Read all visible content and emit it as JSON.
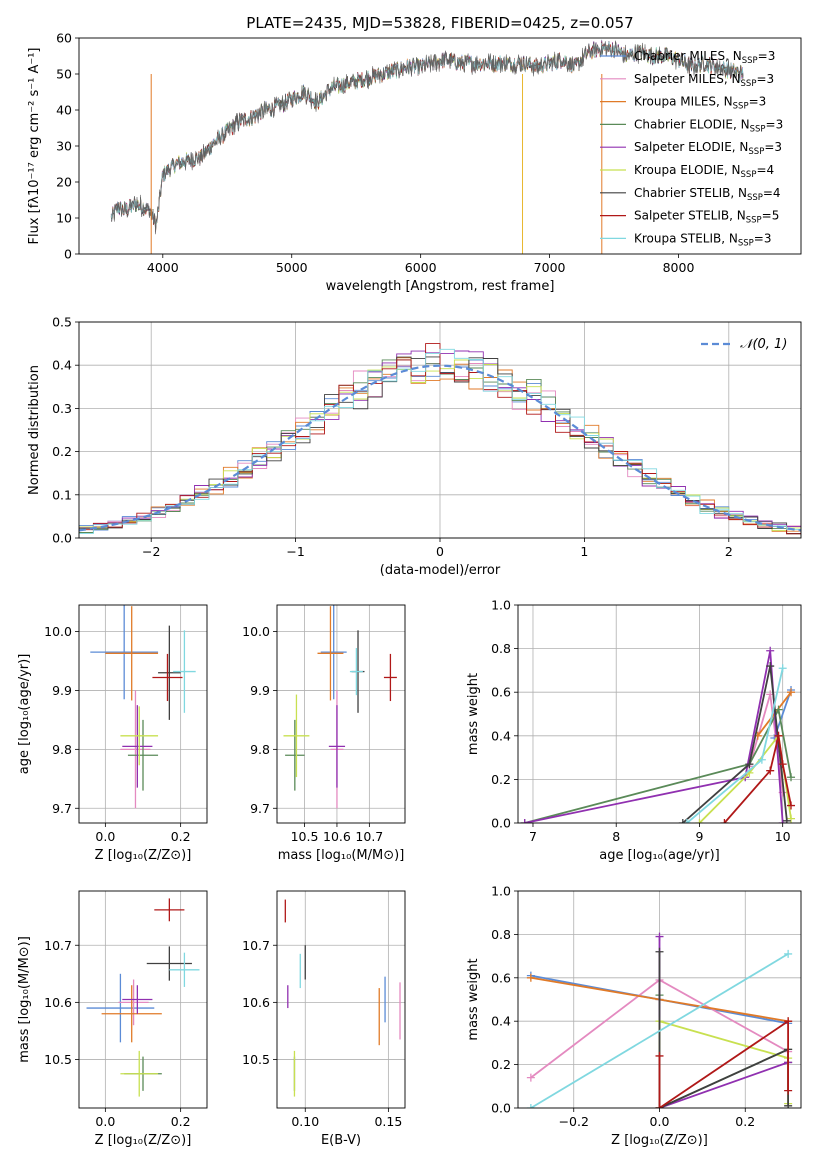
{
  "chart_data": [
    {
      "id": "spectrum",
      "type": "line",
      "title": "PLATE=2435, MJD=53828, FIBERID=0425, z=0.057",
      "xlabel": "wavelength [Angstrom, rest frame]",
      "ylabel": "Flux [fλ10⁻¹⁷ erg cm⁻² s⁻¹ A⁻¹]",
      "xlim": [
        3350,
        8950
      ],
      "ylim": [
        0,
        60
      ],
      "xticks": [
        4000,
        5000,
        6000,
        7000,
        8000
      ],
      "yticks": [
        0,
        10,
        20,
        30,
        40,
        50,
        60
      ],
      "grid": false,
      "legend_position": "top-right",
      "continuum": {
        "x": [
          3600,
          3650,
          3700,
          3800,
          3900,
          3950,
          4000,
          4100,
          4200,
          4300,
          4400,
          4500,
          4600,
          4700,
          4800,
          4900,
          5000,
          5100,
          5200,
          5300,
          5400,
          5500,
          5600,
          5700,
          5800,
          5900,
          6000,
          6100,
          6200,
          6300,
          6400,
          6500,
          6600,
          6700,
          6800,
          6900,
          7000,
          7100,
          7200,
          7300,
          7400,
          7500,
          7600,
          7700,
          7800,
          7900,
          8000,
          8100,
          8200,
          8300,
          8400,
          8500
        ],
        "y": [
          10,
          13,
          12,
          14,
          12,
          8,
          22,
          25,
          26,
          27,
          31,
          34,
          37,
          38,
          40,
          41,
          43,
          45,
          42,
          46,
          47,
          48,
          49,
          50,
          51,
          52,
          52,
          53,
          54,
          53,
          53,
          53,
          53,
          53,
          53,
          52,
          53,
          54,
          52,
          56,
          57,
          57,
          55,
          56,
          55,
          55,
          54,
          52,
          53,
          52,
          51,
          50
        ]
      },
      "series": [
        {
          "name": "Chabrier MILES, N_SSP=3",
          "label_main": "Chabrier MILES, N",
          "label_sub": "SSP",
          "label_tail": "=3",
          "color": "#5b8bd6"
        },
        {
          "name": "Salpeter MILES, N_SSP=3",
          "label_main": "Salpeter MILES, N",
          "label_sub": "SSP",
          "label_tail": "=3",
          "color": "#e48ac0"
        },
        {
          "name": "Kroupa MILES, N_SSP=3",
          "label_main": "Kroupa MILES, N",
          "label_sub": "SSP",
          "label_tail": "=3",
          "color": "#e07a28"
        },
        {
          "name": "Chabrier ELODIE, N_SSP=3",
          "label_main": "Chabrier ELODIE, N",
          "label_sub": "SSP",
          "label_tail": "=3",
          "color": "#5a8a58"
        },
        {
          "name": "Salpeter ELODIE, N_SSP=3",
          "label_main": "Salpeter ELODIE, N",
          "label_sub": "SSP",
          "label_tail": "=3",
          "color": "#9030b0"
        },
        {
          "name": "Kroupa ELODIE, N_SSP=4",
          "label_main": "Kroupa ELODIE, N",
          "label_sub": "SSP",
          "label_tail": "=4",
          "color": "#c8e050"
        },
        {
          "name": "Chabrier STELIB, N_SSP=4",
          "label_main": "Chabrier STELIB, N",
          "label_sub": "SSP",
          "label_tail": "=4",
          "color": "#404040"
        },
        {
          "name": "Salpeter STELIB, N_SSP=5",
          "label_main": "Salpeter STELIB, N",
          "label_sub": "SSP",
          "label_tail": "=5",
          "color": "#b01818"
        },
        {
          "name": "Kroupa STELIB, N_SSP=3",
          "label_main": "Kroupa STELIB, N",
          "label_sub": "SSP",
          "label_tail": "=3",
          "color": "#80d8e0"
        }
      ],
      "drops": [
        {
          "x": 3910,
          "color": "#e07a28"
        },
        {
          "x": 6790,
          "color": "#e8b830"
        },
        {
          "x": 7405,
          "color": "#e07a28"
        }
      ]
    },
    {
      "id": "residuals",
      "type": "step",
      "xlabel": "(data-model)/error",
      "ylabel": "Normed distribution",
      "xlim": [
        -2.5,
        2.5
      ],
      "ylim": [
        0,
        0.5
      ],
      "xticks": [
        -2,
        -1,
        0,
        1,
        2
      ],
      "yticks": [
        0.0,
        0.1,
        0.2,
        0.3,
        0.4,
        0.5
      ],
      "grid": true,
      "legend_position": "top-right",
      "legend_label": "𝒩(0, 1)",
      "bin_width": 0.1,
      "bin_start": -2.5,
      "base_color": "#5b8bd6",
      "hist_colors": [
        "#5b8bd6",
        "#e48ac0",
        "#e07a28",
        "#5a8a58",
        "#9030b0",
        "#c8e050",
        "#404040",
        "#b01818",
        "#80d8e0"
      ]
    },
    {
      "id": "age-vs-Z",
      "type": "scatter",
      "xlabel": "Z [log₁₀(Z/Z⊙)]",
      "ylabel": "age  [log₁₀(age/yr)]",
      "xlim": [
        -0.07,
        0.27
      ],
      "ylim": [
        9.675,
        10.045
      ],
      "xticks": [
        0.0,
        0.2
      ],
      "yticks": [
        9.7,
        9.8,
        9.9,
        10.0
      ],
      "grid": true,
      "points": [
        {
          "x": 0.05,
          "y": 9.965,
          "xerr": 0.09,
          "yerr": 0.08,
          "color": "#5b8bd6"
        },
        {
          "x": 0.08,
          "y": 9.8,
          "xerr": 0.04,
          "yerr": 0.1,
          "color": "#e48ac0"
        },
        {
          "x": 0.07,
          "y": 9.963,
          "xerr": 0.07,
          "yerr": 0.08,
          "color": "#e07a28"
        },
        {
          "x": 0.1,
          "y": 9.79,
          "xerr": 0.04,
          "yerr": 0.06,
          "color": "#5a8a58"
        },
        {
          "x": 0.085,
          "y": 9.805,
          "xerr": 0.04,
          "yerr": 0.07,
          "color": "#9030b0"
        },
        {
          "x": 0.09,
          "y": 9.823,
          "xerr": 0.05,
          "yerr": 0.05,
          "color": "#c8e050"
        },
        {
          "x": 0.17,
          "y": 9.93,
          "xerr": 0.03,
          "yerr": 0.08,
          "color": "#404040"
        },
        {
          "x": 0.165,
          "y": 9.922,
          "xerr": 0.04,
          "yerr": 0.04,
          "color": "#b01818"
        },
        {
          "x": 0.21,
          "y": 9.932,
          "xerr": 0.03,
          "yerr": 0.07,
          "color": "#80d8e0"
        }
      ]
    },
    {
      "id": "age-vs-mass",
      "type": "scatter",
      "xlabel": "mass [log₁₀(M/M⊙)]",
      "xlim": [
        10.415,
        10.81
      ],
      "ylim": [
        9.675,
        10.045
      ],
      "xticks": [
        10.5,
        10.6,
        10.7
      ],
      "yticks": [
        9.7,
        9.8,
        9.9,
        10.0
      ],
      "grid": true,
      "points": [
        {
          "x": 10.59,
          "y": 9.965,
          "xerr": 0.04,
          "yerr": 0.08,
          "color": "#5b8bd6"
        },
        {
          "x": 10.6,
          "y": 9.8,
          "xerr": 0.02,
          "yerr": 0.1,
          "color": "#e48ac0"
        },
        {
          "x": 10.58,
          "y": 9.963,
          "xerr": 0.04,
          "yerr": 0.08,
          "color": "#e07a28"
        },
        {
          "x": 10.47,
          "y": 9.79,
          "xerr": 0.03,
          "yerr": 0.06,
          "color": "#5a8a58"
        },
        {
          "x": 10.6,
          "y": 9.805,
          "xerr": 0.025,
          "yerr": 0.07,
          "color": "#9030b0"
        },
        {
          "x": 10.475,
          "y": 9.823,
          "xerr": 0.04,
          "yerr": 0.07,
          "color": "#c8e050"
        },
        {
          "x": 10.665,
          "y": 9.932,
          "xerr": 0.02,
          "yerr": 0.07,
          "color": "#404040"
        },
        {
          "x": 10.765,
          "y": 9.922,
          "xerr": 0.02,
          "yerr": 0.04,
          "color": "#b01818"
        },
        {
          "x": 10.66,
          "y": 9.932,
          "xerr": 0.02,
          "yerr": 0.04,
          "color": "#80d8e0"
        }
      ]
    },
    {
      "id": "weight-vs-age",
      "type": "line",
      "xlabel": "age  [log₁₀(age/yr)]",
      "ylabel": "mass weight",
      "xlim": [
        6.82,
        10.22
      ],
      "ylim": [
        0,
        1
      ],
      "xticks": [
        7,
        8,
        9,
        10
      ],
      "yticks": [
        0.0,
        0.2,
        0.4,
        0.6,
        0.8,
        1.0
      ],
      "grid": true,
      "series": [
        {
          "color": "#5b8bd6",
          "x": [
            9.9,
            10.1
          ],
          "y": [
            0.39,
            0.61
          ]
        },
        {
          "color": "#e48ac0",
          "x": [
            9.6,
            9.85,
            10.0
          ],
          "y": [
            0.26,
            0.59,
            0.14
          ]
        },
        {
          "color": "#e07a28",
          "x": [
            9.7,
            10.1
          ],
          "y": [
            0.4,
            0.6
          ]
        },
        {
          "color": "#5a8a58",
          "x": [
            6.9,
            9.6,
            9.95,
            10.1
          ],
          "y": [
            0.0,
            0.27,
            0.52,
            0.21
          ]
        },
        {
          "color": "#9030b0",
          "x": [
            6.9,
            9.55,
            9.85,
            10.0
          ],
          "y": [
            0.0,
            0.21,
            0.79,
            0.0
          ]
        },
        {
          "color": "#c8e050",
          "x": [
            9.0,
            9.6,
            9.95,
            10.1
          ],
          "y": [
            0.0,
            0.23,
            0.4,
            0.02
          ]
        },
        {
          "color": "#404040",
          "x": [
            8.8,
            9.6,
            9.85,
            10.05
          ],
          "y": [
            0.0,
            0.27,
            0.72,
            0.01
          ]
        },
        {
          "color": "#b01818",
          "x": [
            9.3,
            9.85,
            9.95,
            10.0,
            10.1
          ],
          "y": [
            0.0,
            0.24,
            0.4,
            0.27,
            0.08
          ]
        },
        {
          "color": "#80d8e0",
          "x": [
            8.85,
            9.75,
            10.0
          ],
          "y": [
            0.0,
            0.29,
            0.71
          ]
        }
      ]
    },
    {
      "id": "mass-vs-Z",
      "type": "scatter",
      "xlabel": "Z [log₁₀(Z/Z⊙)]",
      "ylabel": "mass [log₁₀(M/M⊙)]",
      "xlim": [
        -0.07,
        0.27
      ],
      "ylim": [
        10.415,
        10.795
      ],
      "xticks": [
        0.0,
        0.2
      ],
      "yticks": [
        10.5,
        10.6,
        10.7
      ],
      "grid": true,
      "points": [
        {
          "x": 0.04,
          "y": 10.59,
          "xerr": 0.09,
          "yerr": 0.06,
          "color": "#5b8bd6"
        },
        {
          "x": 0.075,
          "y": 10.6,
          "xerr": 0.04,
          "yerr": 0.04,
          "color": "#e48ac0"
        },
        {
          "x": 0.07,
          "y": 10.58,
          "xerr": 0.08,
          "yerr": 0.05,
          "color": "#e07a28"
        },
        {
          "x": 0.1,
          "y": 10.475,
          "xerr": 0.05,
          "yerr": 0.03,
          "color": "#5a8a58"
        },
        {
          "x": 0.085,
          "y": 10.605,
          "xerr": 0.04,
          "yerr": 0.025,
          "color": "#9030b0"
        },
        {
          "x": 0.09,
          "y": 10.475,
          "xerr": 0.05,
          "yerr": 0.04,
          "color": "#c8e050"
        },
        {
          "x": 0.17,
          "y": 10.668,
          "xerr": 0.06,
          "yerr": 0.03,
          "color": "#404040"
        },
        {
          "x": 0.17,
          "y": 10.762,
          "xerr": 0.04,
          "yerr": 0.02,
          "color": "#b01818"
        },
        {
          "x": 0.21,
          "y": 10.657,
          "xerr": 0.04,
          "yerr": 0.03,
          "color": "#80d8e0"
        }
      ]
    },
    {
      "id": "mass-vs-EBV",
      "type": "scatter",
      "xlabel": "E(B-V)",
      "xlim": [
        0.083,
        0.16
      ],
      "ylim": [
        10.415,
        10.795
      ],
      "xticks": [
        0.1,
        0.15
      ],
      "yticks": [
        10.5,
        10.6,
        10.7
      ],
      "grid": true,
      "points": [
        {
          "x": 0.148,
          "y": 10.605,
          "xerr": 0,
          "yerr": 0.04,
          "color": "#5b8bd6"
        },
        {
          "x": 0.157,
          "y": 10.585,
          "xerr": 0,
          "yerr": 0.05,
          "color": "#e48ac0"
        },
        {
          "x": 0.1445,
          "y": 10.575,
          "xerr": 0,
          "yerr": 0.05,
          "color": "#e07a28"
        },
        {
          "x": 0.0935,
          "y": 10.475,
          "xerr": 0,
          "yerr": 0.03,
          "color": "#5a8a58"
        },
        {
          "x": 0.0895,
          "y": 10.61,
          "xerr": 0,
          "yerr": 0.02,
          "color": "#9030b0"
        },
        {
          "x": 0.0935,
          "y": 10.475,
          "xerr": 0,
          "yerr": 0.04,
          "color": "#c8e050"
        },
        {
          "x": 0.1,
          "y": 10.67,
          "xerr": 0,
          "yerr": 0.03,
          "color": "#404040"
        },
        {
          "x": 0.088,
          "y": 10.76,
          "xerr": 0,
          "yerr": 0.02,
          "color": "#b01818"
        },
        {
          "x": 0.097,
          "y": 10.655,
          "xerr": 0,
          "yerr": 0.03,
          "color": "#80d8e0"
        }
      ]
    },
    {
      "id": "weight-vs-Z",
      "type": "line",
      "xlabel": "Z [log₁₀(Z/Z⊙)]",
      "ylabel": "mass weight",
      "xlim": [
        -0.33,
        0.33
      ],
      "ylim": [
        0,
        1
      ],
      "xticks": [
        -0.2,
        0.0,
        0.2
      ],
      "yticks": [
        0.0,
        0.2,
        0.4,
        0.6,
        0.8,
        1.0
      ],
      "grid": true,
      "series": [
        {
          "color": "#5b8bd6",
          "x": [
            -0.3,
            0.0,
            0.3
          ],
          "y": [
            0.61,
            0.5,
            0.39
          ]
        },
        {
          "color": "#e48ac0",
          "x": [
            -0.3,
            0.0,
            0.3
          ],
          "y": [
            0.14,
            0.59,
            0.26
          ]
        },
        {
          "color": "#e07a28",
          "x": [
            -0.3,
            0.0,
            0.3
          ],
          "y": [
            0.6,
            0.5,
            0.4
          ]
        },
        {
          "color": "#5a8a58",
          "x": [
            0.0,
            0.0,
            0.3,
            0.3
          ],
          "y": [
            0.52,
            0.0,
            0.27,
            0.21
          ]
        },
        {
          "color": "#9030b0",
          "x": [
            0.0,
            0.0,
            0.3
          ],
          "y": [
            0.79,
            0.0,
            0.21
          ]
        },
        {
          "color": "#c8e050",
          "x": [
            0.0,
            0.0,
            0.3,
            0.3
          ],
          "y": [
            0.0,
            0.4,
            0.23,
            0.02
          ]
        },
        {
          "color": "#404040",
          "x": [
            0.0,
            0.0,
            0.3,
            0.3
          ],
          "y": [
            0.72,
            0.0,
            0.27,
            0.01
          ]
        },
        {
          "color": "#b01818",
          "x": [
            0.0,
            0.0,
            0.3,
            0.3
          ],
          "y": [
            0.24,
            0.0,
            0.4,
            0.08
          ]
        },
        {
          "color": "#80d8e0",
          "x": [
            -0.3,
            0.3
          ],
          "y": [
            0.0,
            0.71
          ]
        }
      ]
    }
  ]
}
